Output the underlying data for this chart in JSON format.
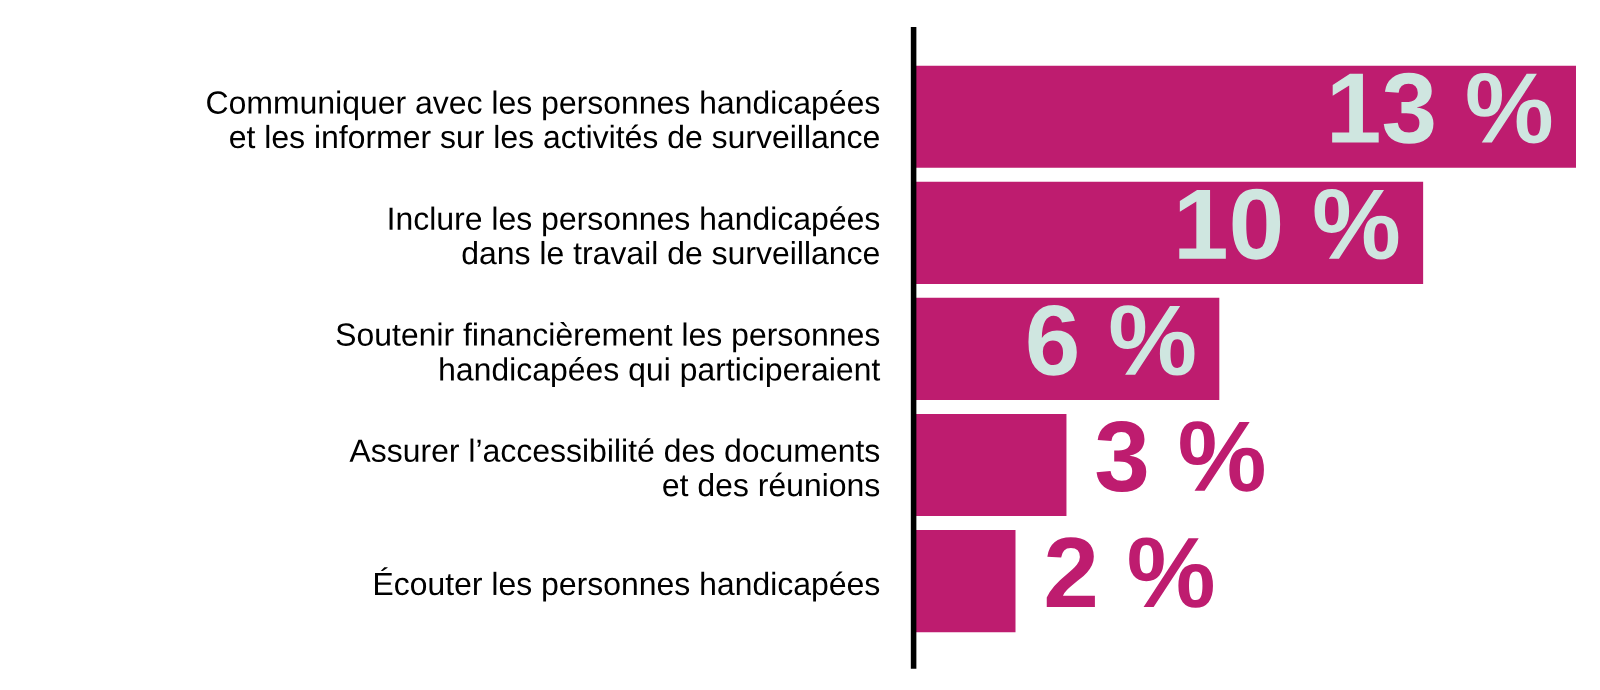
{
  "chart_data": {
    "type": "bar",
    "orientation": "horizontal",
    "categories": [
      "Communiquer avec les personnes handicapées\net les informer sur les activités de surveillance",
      "Inclure les personnes handicapées\ndans le travail de surveillance",
      "Soutenir financièrement les personnes\nhandicapées qui participeraient",
      "Assurer l’accessibilité des documents\net des réunions",
      "Écouter les personnes handicapées"
    ],
    "values": [
      13,
      10,
      6,
      3,
      2
    ],
    "value_labels": [
      "13 %",
      "10 %",
      "6 %",
      "3 %",
      "2 %"
    ],
    "color": "#be1c6f"
  }
}
